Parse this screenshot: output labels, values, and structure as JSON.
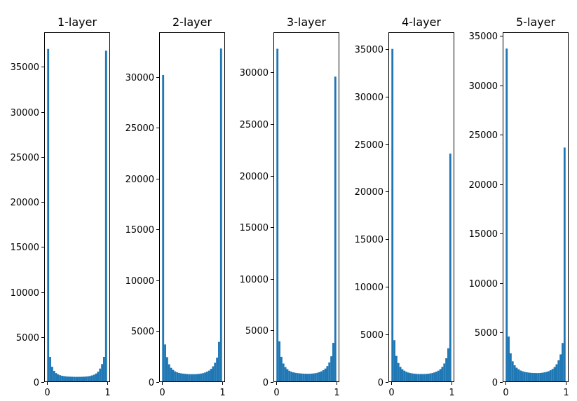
{
  "chart_data": [
    {
      "type": "bar",
      "title": "1-layer",
      "xlabel": "",
      "ylabel": "",
      "xlim": [
        0,
        1
      ],
      "ylim": [
        0,
        38850
      ],
      "xticks": [
        0,
        1
      ],
      "yticks": [
        0,
        5000,
        10000,
        15000,
        20000,
        25000,
        30000,
        35000
      ],
      "grid": false,
      "color": "#1f77b4",
      "bins": 30,
      "values": [
        37000,
        2800,
        1700,
        1250,
        1000,
        850,
        760,
        700,
        660,
        630,
        610,
        600,
        590,
        585,
        580,
        580,
        585,
        590,
        600,
        615,
        640,
        680,
        740,
        820,
        950,
        1150,
        1500,
        2000,
        2800,
        36800
      ]
    },
    {
      "type": "bar",
      "title": "2-layer",
      "xlabel": "",
      "ylabel": "",
      "xlim": [
        0,
        1
      ],
      "ylim": [
        0,
        34400
      ],
      "xticks": [
        0,
        1
      ],
      "yticks": [
        0,
        5000,
        10000,
        15000,
        20000,
        25000,
        30000
      ],
      "grid": false,
      "color": "#1f77b4",
      "bins": 30,
      "values": [
        30200,
        3700,
        2450,
        1750,
        1400,
        1200,
        1050,
        960,
        900,
        860,
        830,
        810,
        790,
        780,
        775,
        775,
        780,
        790,
        810,
        840,
        880,
        940,
        1020,
        1130,
        1300,
        1550,
        1900,
        2400,
        3950,
        32800
      ]
    },
    {
      "type": "bar",
      "title": "3-layer",
      "xlabel": "",
      "ylabel": "",
      "xlim": [
        0,
        1
      ],
      "ylim": [
        0,
        33900
      ],
      "xticks": [
        0,
        1
      ],
      "yticks": [
        0,
        5000,
        10000,
        15000,
        20000,
        25000,
        30000
      ],
      "grid": false,
      "color": "#1f77b4",
      "bins": 30,
      "values": [
        32300,
        3950,
        2450,
        1800,
        1450,
        1250,
        1100,
        1000,
        940,
        900,
        870,
        850,
        830,
        815,
        805,
        800,
        805,
        815,
        835,
        860,
        900,
        960,
        1040,
        1150,
        1310,
        1550,
        1900,
        2500,
        3800,
        29600
      ]
    },
    {
      "type": "bar",
      "title": "4-layer",
      "xlabel": "",
      "ylabel": "",
      "xlim": [
        0,
        1
      ],
      "ylim": [
        0,
        36750
      ],
      "xticks": [
        0,
        1
      ],
      "yticks": [
        0,
        5000,
        10000,
        15000,
        20000,
        25000,
        30000,
        35000
      ],
      "grid": false,
      "color": "#1f77b4",
      "bins": 30,
      "values": [
        35000,
        4400,
        2750,
        2000,
        1600,
        1350,
        1200,
        1080,
        1000,
        950,
        910,
        880,
        860,
        850,
        845,
        845,
        850,
        860,
        880,
        910,
        950,
        1010,
        1090,
        1200,
        1360,
        1600,
        1950,
        2500,
        3550,
        24000
      ]
    },
    {
      "type": "bar",
      "title": "5-layer",
      "xlabel": "",
      "ylabel": "",
      "xlim": [
        0,
        1
      ],
      "ylim": [
        0,
        35350
      ],
      "xticks": [
        0,
        1
      ],
      "yticks": [
        0,
        5000,
        10000,
        15000,
        20000,
        25000,
        30000,
        35000
      ],
      "grid": false,
      "color": "#1f77b4",
      "bins": 30,
      "values": [
        33700,
        4600,
        2900,
        2100,
        1700,
        1450,
        1300,
        1170,
        1090,
        1030,
        990,
        960,
        940,
        925,
        915,
        910,
        915,
        925,
        950,
        985,
        1030,
        1100,
        1200,
        1330,
        1520,
        1800,
        2200,
        2800,
        3950,
        23700
      ]
    }
  ]
}
